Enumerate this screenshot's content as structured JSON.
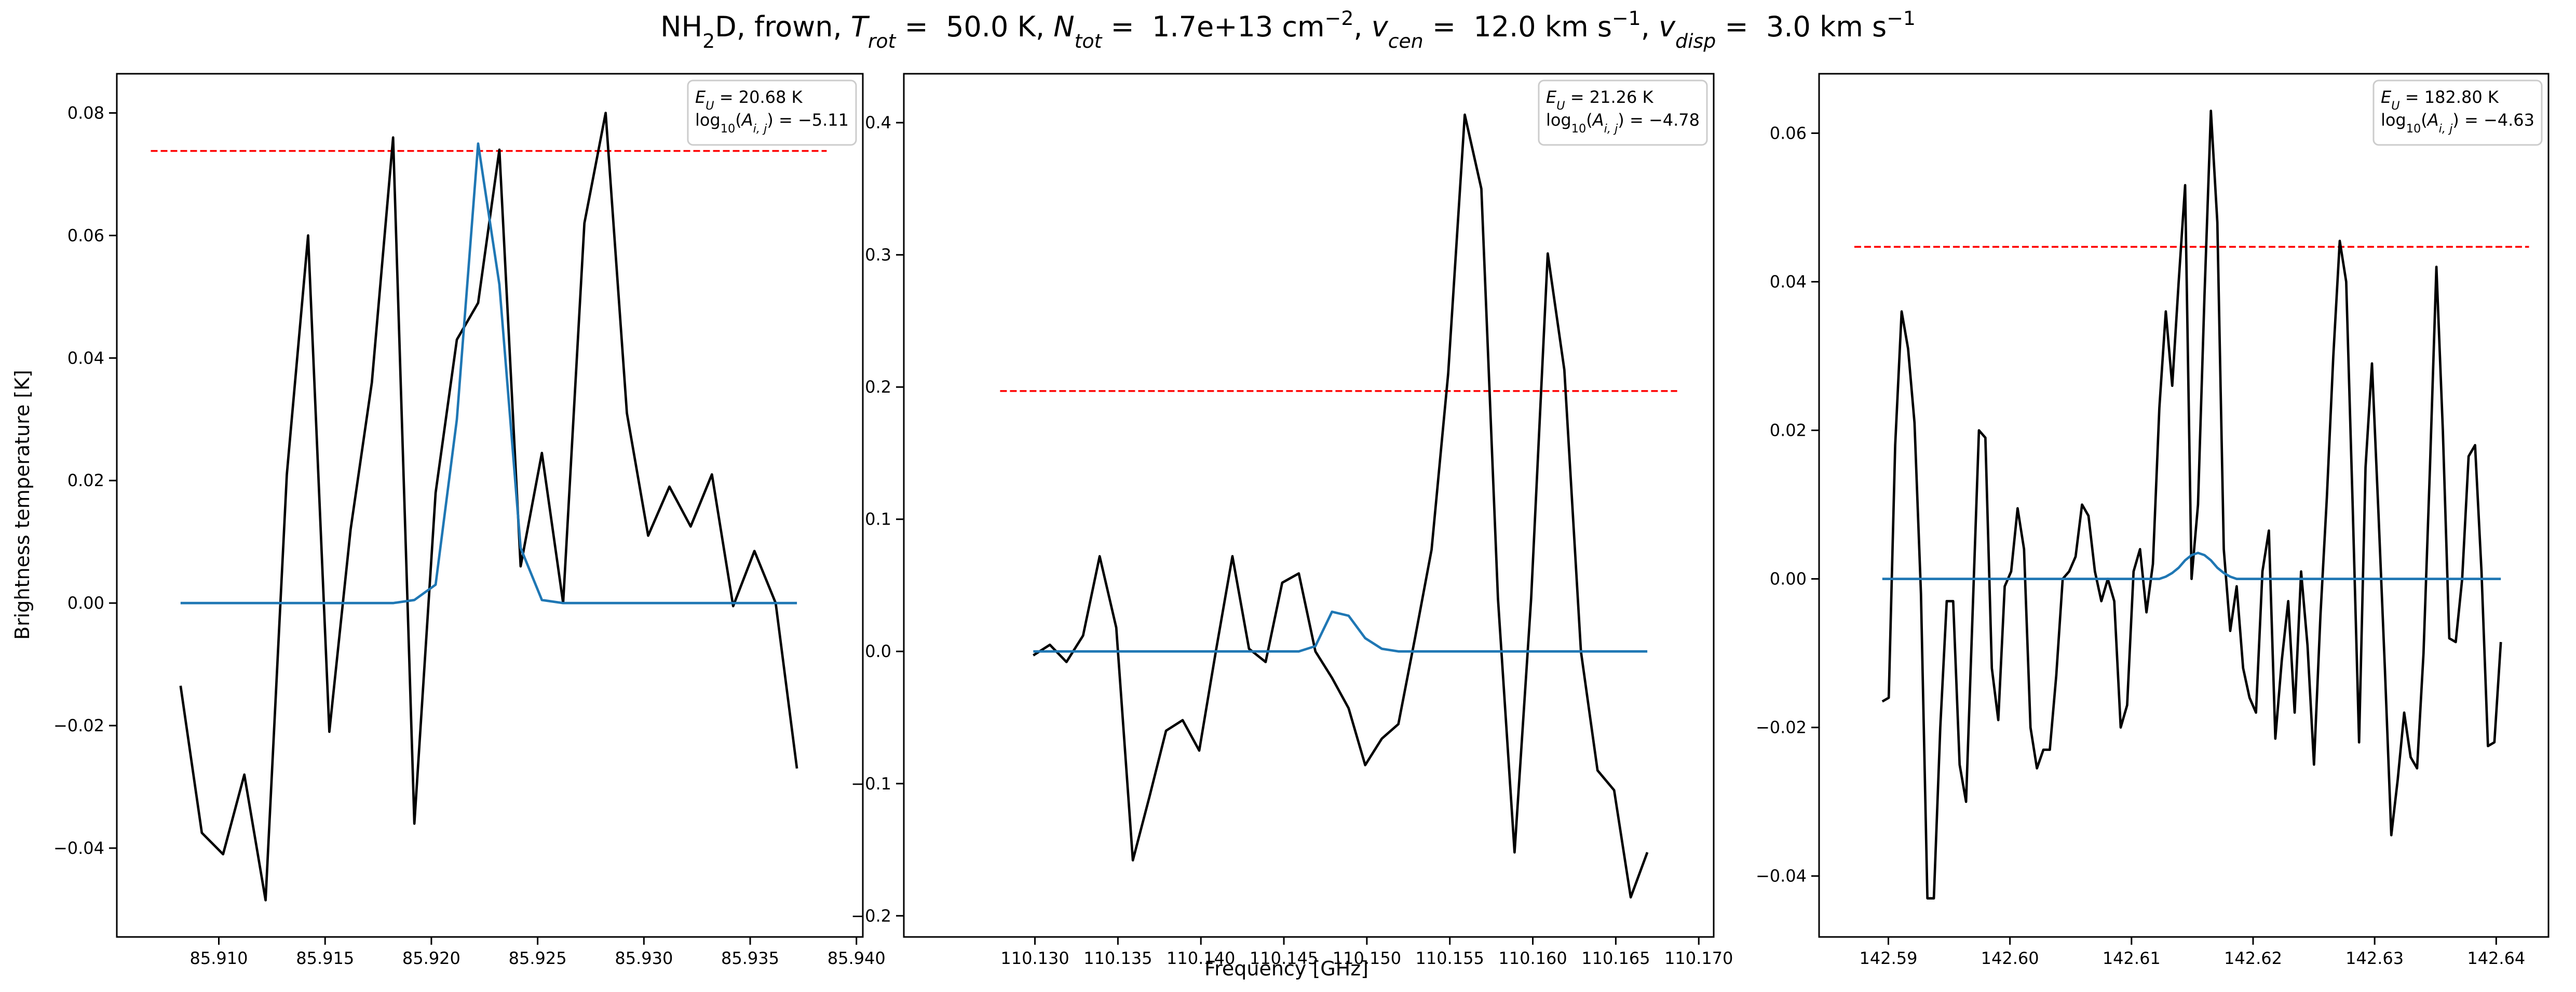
{
  "figure": {
    "title_parts": [
      {
        "text": "NH"
      },
      {
        "text": "2",
        "shift": "sub"
      },
      {
        "text": "D, frown, "
      },
      {
        "text": "T",
        "italic": true
      },
      {
        "text": "rot",
        "italic": true,
        "shift": "sub"
      },
      {
        "text": " =  50.0 K, "
      },
      {
        "text": "N",
        "italic": true
      },
      {
        "text": "tot",
        "italic": true,
        "shift": "sub"
      },
      {
        "text": " =  1.7e+13 cm"
      },
      {
        "text": "−2",
        "shift": "super"
      },
      {
        "text": ", "
      },
      {
        "text": "v",
        "italic": true
      },
      {
        "text": "cen",
        "italic": true,
        "shift": "sub"
      },
      {
        "text": " =  12.0 km s"
      },
      {
        "text": "−1",
        "shift": "super"
      },
      {
        "text": ", "
      },
      {
        "text": "v",
        "italic": true
      },
      {
        "text": "disp",
        "italic": true,
        "shift": "sub"
      },
      {
        "text": " =  3.0 km s"
      },
      {
        "text": "−1",
        "shift": "super"
      }
    ],
    "xlabel": "Frequency [GHz]",
    "ylabel": "Brightness temperature [K]"
  },
  "chart_data": [
    {
      "type": "line",
      "x": [
        85.9082,
        85.9092,
        85.9102,
        85.9112,
        85.9122,
        85.9132,
        85.9142,
        85.9152,
        85.9162,
        85.9172,
        85.9182,
        85.9192,
        85.9202,
        85.9212,
        85.9222,
        85.9232,
        85.9242,
        85.9252,
        85.9262,
        85.9272,
        85.9282,
        85.9292,
        85.9302,
        85.9312,
        85.9322,
        85.9332,
        85.9342,
        85.9352,
        85.9362,
        85.9372
      ],
      "series": [
        {
          "color": "#000000",
          "values": [
            -0.0135,
            -0.0375,
            -0.041,
            -0.028,
            -0.0485,
            0.021,
            0.06,
            -0.021,
            0.012,
            0.036,
            0.076,
            -0.036,
            0.018,
            0.043,
            0.049,
            0.074,
            0.006,
            0.0245,
            0.0,
            0.062,
            0.08,
            0.031,
            0.011,
            0.019,
            0.0125,
            0.021,
            -0.0005,
            0.0085,
            0.0,
            -0.027
          ]
        },
        {
          "color": "#1f77b4",
          "values": [
            0,
            0,
            0,
            0,
            0,
            0,
            0,
            0,
            0,
            0,
            0,
            0.0005,
            0.003,
            0.03,
            0.075,
            0.052,
            0.009,
            0.0005,
            0,
            0,
            0,
            0,
            0,
            0,
            0,
            0,
            0,
            0,
            0,
            0
          ]
        }
      ],
      "hline": {
        "value": 0.0738,
        "xrange": [
          85.9068,
          85.9386
        ],
        "color": "#ff0000",
        "dashed": true
      },
      "xlim": [
        85.9052,
        85.9403
      ],
      "ylim": [
        -0.0545,
        0.0864
      ],
      "xticks": [
        {
          "value": 85.91,
          "label": "85.910"
        },
        85.915,
        {
          "value": 85.92,
          "label": "85.920"
        },
        85.925,
        {
          "value": 85.93,
          "label": "85.930"
        },
        85.935,
        {
          "value": 85.94,
          "label": "85.940"
        }
      ],
      "yticks": [
        {
          "value": -0.04,
          "label": "−0.04"
        },
        {
          "value": -0.02,
          "label": "−0.02"
        },
        {
          "value": 0,
          "label": "0.00"
        },
        0.02,
        0.04,
        0.06,
        0.08
      ],
      "annotation": [
        [
          {
            "text": "E",
            "italic": true
          },
          {
            "text": "U",
            "italic": true,
            "shift": "sub"
          },
          {
            "text": " = 20.68 K"
          }
        ],
        [
          {
            "text": "log"
          },
          {
            "text": "10",
            "shift": "sub"
          },
          {
            "text": "("
          },
          {
            "text": "A",
            "italic": true
          },
          {
            "text": "i, j",
            "italic": true,
            "shift": "sub"
          },
          {
            "text": ") = −5.11"
          }
        ]
      ]
    },
    {
      "type": "line",
      "x": [
        110.1299,
        110.1309,
        110.1319,
        110.1329,
        110.1339,
        110.1349,
        110.1359,
        110.1369,
        110.1379,
        110.1389,
        110.1399,
        110.1409,
        110.1419,
        110.1429,
        110.1439,
        110.1449,
        110.1459,
        110.1469,
        110.1479,
        110.1489,
        110.1499,
        110.1509,
        110.1519,
        110.1529,
        110.1539,
        110.1549,
        110.1559,
        110.1569,
        110.1579,
        110.1589,
        110.1599,
        110.1609,
        110.1619,
        110.1629,
        110.1639,
        110.1649,
        110.1659,
        110.1669
      ],
      "series": [
        {
          "color": "#000000",
          "values": [
            -0.003,
            0.005,
            -0.008,
            0.012,
            0.072,
            0.018,
            -0.158,
            -0.11,
            -0.06,
            -0.052,
            -0.075,
            0.0,
            0.072,
            0.002,
            -0.008,
            0.052,
            0.059,
            0.0,
            -0.02,
            -0.043,
            -0.086,
            -0.066,
            -0.055,
            0.01,
            0.077,
            0.21,
            0.406,
            0.35,
            0.04,
            -0.152,
            0.04,
            0.301,
            0.213,
            0.0,
            -0.09,
            -0.105,
            -0.186,
            -0.152
          ]
        },
        {
          "color": "#1f77b4",
          "values": [
            0,
            0,
            0,
            0,
            0,
            0,
            0,
            0,
            0,
            0,
            0,
            0,
            0,
            0,
            0,
            0,
            0,
            0.004,
            0.03,
            0.027,
            0.01,
            0.002,
            0,
            0,
            0,
            0,
            0,
            0,
            0,
            0,
            0,
            0,
            0,
            0,
            0,
            0,
            0,
            0
          ]
        }
      ],
      "hline": {
        "value": 0.197,
        "xrange": [
          110.1279,
          110.1687
        ],
        "color": "#ff0000",
        "dashed": true
      },
      "xlim": [
        110.1221,
        110.1709
      ],
      "ylim": [
        -0.216,
        0.437
      ],
      "xticks": [
        {
          "value": 110.13,
          "label": "110.130"
        },
        110.135,
        {
          "value": 110.14,
          "label": "110.140"
        },
        110.145,
        {
          "value": 110.15,
          "label": "110.150"
        },
        110.155,
        {
          "value": 110.16,
          "label": "110.160"
        },
        110.165,
        {
          "value": 110.17,
          "label": "110.170"
        }
      ],
      "yticks": [
        {
          "value": -0.2,
          "label": "−0.2"
        },
        {
          "value": -0.1,
          "label": "−0.1"
        },
        {
          "value": 0,
          "label": "0.0"
        },
        0.1,
        0.2,
        0.3,
        0.4
      ],
      "annotation": [
        [
          {
            "text": "E",
            "italic": true
          },
          {
            "text": "U",
            "italic": true,
            "shift": "sub"
          },
          {
            "text": " = 21.26 K"
          }
        ],
        [
          {
            "text": "log"
          },
          {
            "text": "10",
            "shift": "sub"
          },
          {
            "text": "("
          },
          {
            "text": "A",
            "italic": true
          },
          {
            "text": "i, j",
            "italic": true,
            "shift": "sub"
          },
          {
            "text": ") = −4.78"
          }
        ]
      ]
    },
    {
      "type": "line",
      "x": [
        142.5895,
        142.59003,
        142.59056,
        142.59109,
        142.59162,
        142.59215,
        142.59268,
        142.59321,
        142.59374,
        142.59427,
        142.5948,
        142.59533,
        142.59586,
        142.59639,
        142.59692,
        142.59745,
        142.59798,
        142.59851,
        142.59904,
        142.59957,
        142.6001,
        142.60063,
        142.60116,
        142.60169,
        142.60222,
        142.60275,
        142.60328,
        142.60381,
        142.60434,
        142.60487,
        142.6054,
        142.60593,
        142.60646,
        142.60699,
        142.60752,
        142.60805,
        142.60858,
        142.60911,
        142.60964,
        142.61017,
        142.6107,
        142.61123,
        142.61176,
        142.61229,
        142.61282,
        142.61335,
        142.61388,
        142.61441,
        142.61494,
        142.61547,
        142.616,
        142.61653,
        142.61706,
        142.61759,
        142.61812,
        142.61865,
        142.61918,
        142.61971,
        142.62024,
        142.62077,
        142.6213,
        142.62183,
        142.62236,
        142.62289,
        142.62342,
        142.62395,
        142.62448,
        142.62501,
        142.62554,
        142.62607,
        142.6266,
        142.62713,
        142.62766,
        142.62819,
        142.62872,
        142.62925,
        142.62978,
        142.63031,
        142.63084,
        142.63137,
        142.6319,
        142.63243,
        142.63296,
        142.63349,
        142.63402,
        142.63455,
        142.63508,
        142.63561,
        142.63614,
        142.63667,
        142.6372,
        142.63773,
        142.63826,
        142.63879,
        142.63932,
        142.63985,
        142.64038
      ],
      "series": [
        {
          "color": "#000000",
          "values": [
            -0.0165,
            -0.016,
            0.018,
            0.036,
            0.031,
            0.021,
            -0.002,
            -0.043,
            -0.043,
            -0.02,
            -0.003,
            -0.003,
            -0.025,
            -0.03,
            -0.005,
            0.02,
            0.019,
            -0.012,
            -0.019,
            -0.001,
            0.001,
            0.0095,
            0.004,
            -0.02,
            -0.0255,
            -0.023,
            -0.023,
            -0.013,
            0.0,
            0.001,
            0.003,
            0.01,
            0.0085,
            0.001,
            -0.003,
            0.0,
            -0.003,
            -0.02,
            -0.017,
            0.001,
            0.004,
            -0.0045,
            0.002,
            0.023,
            0.036,
            0.026,
            0.04,
            0.053,
            0.0,
            0.01,
            0.038,
            0.063,
            0.048,
            0.004,
            -0.007,
            -0.001,
            -0.012,
            -0.016,
            -0.018,
            0.001,
            0.0065,
            -0.0215,
            -0.011,
            -0.003,
            -0.018,
            0.001,
            -0.009,
            -0.025,
            -0.005,
            0.011,
            0.03,
            0.0455,
            0.04,
            0.01,
            -0.022,
            0.015,
            0.029,
            0.009,
            -0.012,
            -0.0345,
            -0.027,
            -0.018,
            -0.024,
            -0.0255,
            -0.01,
            0.015,
            0.042,
            0.02,
            -0.008,
            -0.0085,
            0.0,
            0.0165,
            0.018,
            0.001,
            -0.0225,
            -0.022,
            -0.0085
          ]
        },
        {
          "color": "#1f77b4",
          "values": [
            0,
            0,
            0,
            0,
            0,
            0,
            0,
            0,
            0,
            0,
            0,
            0,
            0,
            0,
            0,
            0,
            0,
            0,
            0,
            0,
            0,
            0,
            0,
            0,
            0,
            0,
            0,
            0,
            0,
            0,
            0,
            0,
            0,
            0,
            0,
            0,
            0,
            0,
            0,
            0,
            0,
            0,
            0,
            0,
            0.0003,
            0.0008,
            0.0015,
            0.0025,
            0.0032,
            0.0035,
            0.0032,
            0.0025,
            0.0015,
            0.0008,
            0.0003,
            0,
            0,
            0,
            0,
            0,
            0,
            0,
            0,
            0,
            0,
            0,
            0,
            0,
            0,
            0,
            0,
            0,
            0,
            0,
            0,
            0,
            0,
            0,
            0,
            0,
            0,
            0,
            0,
            0,
            0,
            0,
            0,
            0,
            0,
            0,
            0,
            0,
            0,
            0,
            0,
            0,
            0
          ]
        }
      ],
      "hline": {
        "value": 0.0447,
        "xrange": [
          142.5872,
          142.6427
        ],
        "color": "#ff0000",
        "dashed": true
      },
      "xlim": [
        142.5843,
        142.6443
      ],
      "ylim": [
        -0.0482,
        0.068
      ],
      "xticks": [
        142.59,
        {
          "value": 142.6,
          "label": "142.60"
        },
        142.61,
        142.62,
        142.63,
        142.64
      ],
      "yticks": [
        {
          "value": -0.04,
          "label": "−0.04"
        },
        {
          "value": -0.02,
          "label": "−0.02"
        },
        {
          "value": 0,
          "label": "0.00"
        },
        0.02,
        0.04,
        0.06
      ],
      "annotation": [
        [
          {
            "text": "E",
            "italic": true
          },
          {
            "text": "U",
            "italic": true,
            "shift": "sub"
          },
          {
            "text": " = 182.80 K"
          }
        ],
        [
          {
            "text": "log"
          },
          {
            "text": "10",
            "shift": "sub"
          },
          {
            "text": "("
          },
          {
            "text": "A",
            "italic": true
          },
          {
            "text": "i, j",
            "italic": true,
            "shift": "sub"
          },
          {
            "text": ") = −4.63"
          }
        ]
      ]
    }
  ]
}
